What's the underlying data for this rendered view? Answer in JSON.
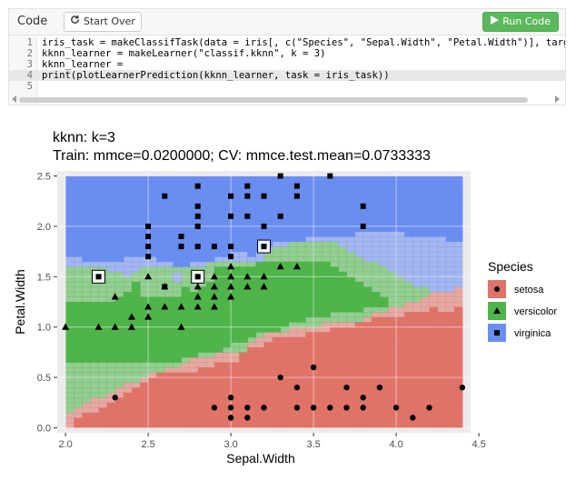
{
  "toolbar": {
    "code_label": "Code",
    "start_over_label": "Start Over",
    "run_code_label": "Run Code"
  },
  "editor": {
    "lines": [
      {
        "num": "1",
        "text": "iris_task = makeClassifTask(data = iris[, c(\"Species\", \"Sepal.Width\", \"Petal.Width\")], target ="
      },
      {
        "num": "2",
        "text": "kknn_learner = makeLearner(\"classif.kknn\", k = 3)"
      },
      {
        "num": "3",
        "text": "kknn_learner ="
      },
      {
        "num": "4",
        "text": "print(plotLearnerPrediction(kknn_learner, task = iris_task))"
      },
      {
        "num": "5",
        "text": ""
      }
    ],
    "active_line": 4
  },
  "plot": {
    "title_line1": "kknn: k=3",
    "title_line2": "Train: mmce=0.0200000; CV: mmce.test.mean=0.0733333"
  },
  "chart_data": {
    "type": "scatter",
    "xlabel": "Sepal.Width",
    "ylabel": "Petal.Width",
    "xlim": [
      1.95,
      4.45
    ],
    "ylim": [
      -0.05,
      2.55
    ],
    "xticks": [
      2.0,
      2.5,
      3.0,
      3.5,
      4.0,
      4.5
    ],
    "xtick_labels": [
      "2.0",
      "2.5",
      "3.0",
      "3.5",
      "4.0",
      "4.5"
    ],
    "yticks": [
      0.0,
      0.5,
      1.0,
      1.5,
      2.0,
      2.5
    ],
    "ytick_labels": [
      "0.0",
      "0.5",
      "1.0",
      "1.5",
      "2.0",
      "2.5"
    ],
    "grid": true,
    "legend": {
      "title": "Species",
      "placement": "right"
    },
    "colors": {
      "setosa": "#e07368",
      "versicolor": "#4fb44a",
      "virginica": "#6a8df0"
    },
    "series": [
      {
        "name": "setosa",
        "marker": "circle",
        "points": [
          [
            2.3,
            0.3
          ],
          [
            2.9,
            0.2
          ],
          [
            3.0,
            0.2
          ],
          [
            3.0,
            0.1
          ],
          [
            3.0,
            0.3
          ],
          [
            3.1,
            0.2
          ],
          [
            3.1,
            0.1
          ],
          [
            3.2,
            0.2
          ],
          [
            3.3,
            0.5
          ],
          [
            3.4,
            0.2
          ],
          [
            3.4,
            0.4
          ],
          [
            3.5,
            0.2
          ],
          [
            3.5,
            0.6
          ],
          [
            3.6,
            0.2
          ],
          [
            3.7,
            0.2
          ],
          [
            3.7,
            0.4
          ],
          [
            3.8,
            0.2
          ],
          [
            3.8,
            0.3
          ],
          [
            3.9,
            0.4
          ],
          [
            4.0,
            0.2
          ],
          [
            4.1,
            0.1
          ],
          [
            4.2,
            0.2
          ],
          [
            4.4,
            0.4
          ]
        ]
      },
      {
        "name": "versicolor",
        "marker": "triangle",
        "points": [
          [
            2.0,
            1.0
          ],
          [
            2.2,
            1.0
          ],
          [
            2.3,
            1.3
          ],
          [
            2.4,
            1.0
          ],
          [
            2.4,
            1.1
          ],
          [
            2.5,
            1.1
          ],
          [
            2.5,
            1.2
          ],
          [
            2.6,
            1.2
          ],
          [
            2.7,
            1.0
          ],
          [
            2.7,
            1.2
          ],
          [
            2.8,
            1.3
          ],
          [
            2.9,
            1.3
          ],
          [
            3.0,
            1.3
          ],
          [
            2.5,
            1.5
          ],
          [
            2.6,
            1.4
          ],
          [
            2.8,
            1.4
          ],
          [
            2.9,
            1.4
          ],
          [
            3.0,
            1.4
          ],
          [
            3.1,
            1.4
          ],
          [
            3.1,
            1.5
          ],
          [
            3.2,
            1.5
          ],
          [
            3.3,
            1.6
          ],
          [
            3.4,
            1.6
          ],
          [
            2.9,
            1.5
          ],
          [
            3.0,
            1.5
          ],
          [
            3.2,
            1.4
          ],
          [
            2.3,
            1.0
          ],
          [
            2.9,
            1.2
          ],
          [
            2.8,
            1.2
          ],
          [
            3.0,
            1.6
          ]
        ]
      },
      {
        "name": "virginica",
        "marker": "square",
        "points": [
          [
            2.6,
            2.3
          ],
          [
            2.8,
            2.4
          ],
          [
            2.8,
            2.2
          ],
          [
            2.8,
            2.1
          ],
          [
            2.8,
            2.0
          ],
          [
            2.8,
            1.8
          ],
          [
            2.9,
            1.8
          ],
          [
            3.0,
            2.3
          ],
          [
            3.0,
            2.1
          ],
          [
            3.0,
            1.8
          ],
          [
            3.1,
            2.4
          ],
          [
            3.1,
            2.3
          ],
          [
            3.1,
            2.1
          ],
          [
            3.2,
            2.3
          ],
          [
            3.2,
            2.0
          ],
          [
            3.3,
            2.5
          ],
          [
            3.3,
            2.1
          ],
          [
            3.4,
            2.4
          ],
          [
            3.4,
            2.3
          ],
          [
            3.6,
            2.5
          ],
          [
            3.8,
            2.2
          ],
          [
            3.8,
            2.0
          ],
          [
            2.5,
            2.0
          ],
          [
            2.5,
            1.9
          ],
          [
            2.5,
            1.8
          ],
          [
            2.5,
            1.7
          ],
          [
            2.7,
            1.9
          ],
          [
            2.7,
            1.8
          ],
          [
            2.6,
            1.4
          ],
          [
            2.2,
            1.5
          ],
          [
            2.8,
            1.5
          ],
          [
            3.0,
            1.7
          ],
          [
            3.2,
            1.8
          ]
        ]
      }
    ],
    "misclassified": [
      [
        2.2,
        1.5
      ],
      [
        2.8,
        1.5
      ],
      [
        3.2,
        1.8
      ]
    ]
  }
}
